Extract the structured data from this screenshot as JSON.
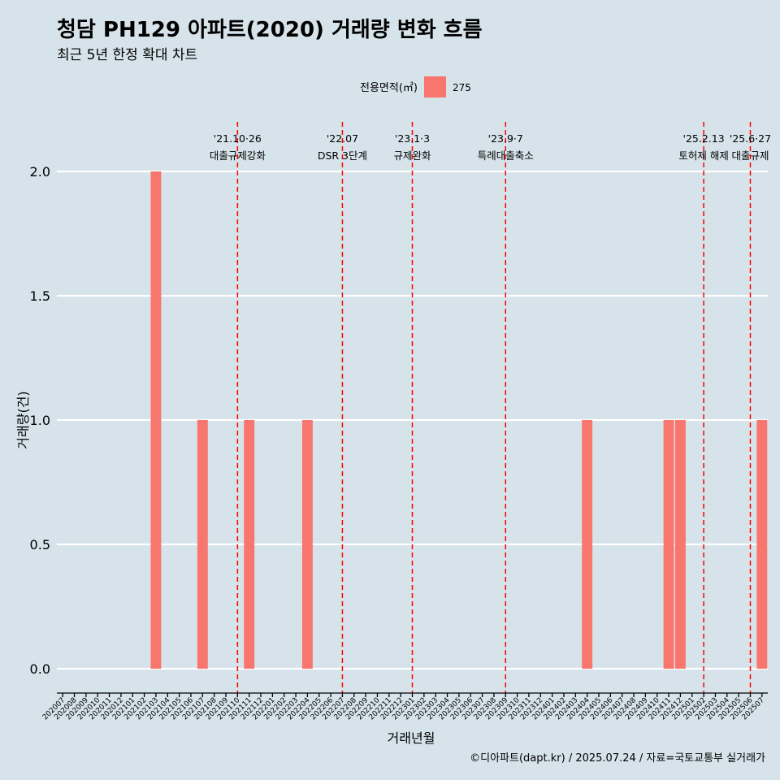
{
  "title": "청담 PH129 아파트(2020) 거래량 변화 흐름",
  "subtitle": "최근 5년 한정 확대 차트",
  "caption": "©디아파트(dapt.kr) / 2025.07.24 / 자료=국토교통부 실거래가",
  "legend": {
    "title": "전용면적(㎡)",
    "items": [
      {
        "label": "275",
        "color": "#f8766d"
      }
    ]
  },
  "chart_data": {
    "type": "bar",
    "xlabel": "거래년월",
    "ylabel": "거래량(건)",
    "ylim": [
      0,
      2
    ],
    "yticks": [
      0.0,
      0.5,
      1.0,
      1.5,
      2.0
    ],
    "ytick_labels": [
      "0.0",
      "0.5",
      "1.0",
      "1.5",
      "2.0"
    ],
    "grid": true,
    "legend_position": "top",
    "categories": [
      "202007",
      "202008",
      "202009",
      "202010",
      "202011",
      "202012",
      "202101",
      "202102",
      "202103",
      "202104",
      "202105",
      "202106",
      "202107",
      "202108",
      "202109",
      "202110",
      "202111",
      "202112",
      "202201",
      "202202",
      "202203",
      "202204",
      "202205",
      "202206",
      "202207",
      "202208",
      "202209",
      "202210",
      "202211",
      "202212",
      "202301",
      "202302",
      "202303",
      "202304",
      "202305",
      "202306",
      "202307",
      "202308",
      "202309",
      "202310",
      "202311",
      "202312",
      "202401",
      "202402",
      "202403",
      "202404",
      "202405",
      "202406",
      "202407",
      "202408",
      "202409",
      "202410",
      "202411",
      "202412",
      "202501",
      "202502",
      "202503",
      "202504",
      "202505",
      "202506",
      "202507"
    ],
    "series": [
      {
        "name": "275",
        "color": "#f8766d",
        "values": [
          0,
          0,
          0,
          0,
          0,
          0,
          0,
          0,
          2,
          0,
          0,
          0,
          1,
          0,
          0,
          0,
          1,
          0,
          0,
          0,
          0,
          1,
          0,
          0,
          0,
          0,
          0,
          0,
          0,
          0,
          0,
          0,
          0,
          0,
          0,
          0,
          0,
          0,
          0,
          0,
          0,
          0,
          0,
          0,
          0,
          1,
          0,
          0,
          0,
          0,
          0,
          0,
          1,
          1,
          0,
          0,
          0,
          0,
          0,
          0,
          1
        ]
      }
    ],
    "annotations": [
      {
        "x": "202110",
        "date": "'21.10·26",
        "label": "대출규제강화"
      },
      {
        "x": "202207",
        "date": "'22.07",
        "label": "DSR 3단계"
      },
      {
        "x": "202301",
        "date": "'23.1·3",
        "label": "규제완화"
      },
      {
        "x": "202309",
        "date": "'23.9·7",
        "label": "특례대출축소"
      },
      {
        "x": "202502",
        "date": "'25.2.13",
        "label": "토허제 해제"
      },
      {
        "x": "202506",
        "date": "'25.6·27",
        "label": "대출규제"
      }
    ],
    "reference_line_color": "#ff0000"
  }
}
